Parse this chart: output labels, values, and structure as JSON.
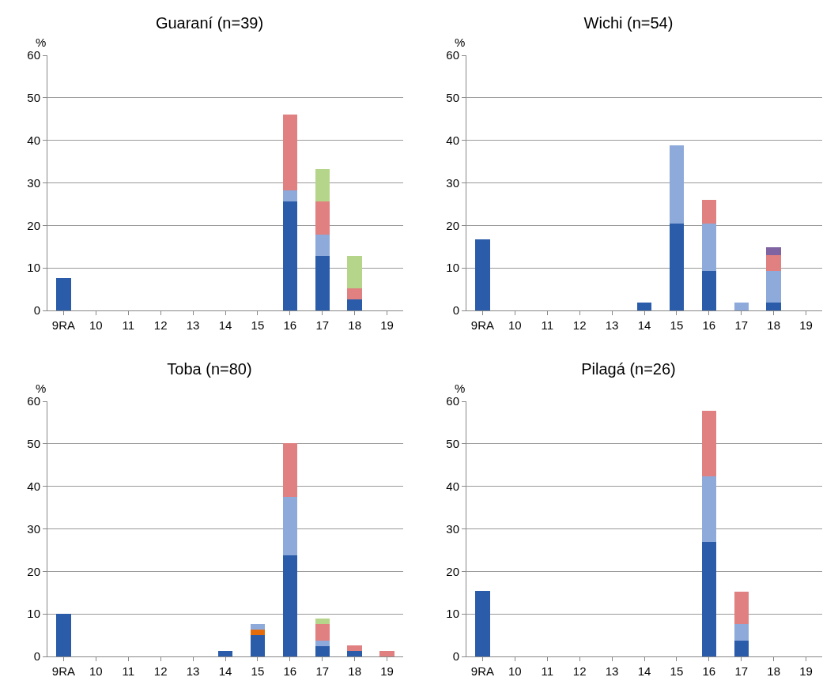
{
  "chart_data": [
    {
      "type": "bar",
      "title": "Guaraní (n=39)",
      "ylabel": "%",
      "categories": [
        "9RA",
        "10",
        "11",
        "12",
        "13",
        "14",
        "15",
        "16",
        "17",
        "18",
        "19"
      ],
      "stacked": true,
      "ylim": [
        0,
        60
      ],
      "yticks": [
        0,
        10,
        20,
        30,
        40,
        50,
        60
      ],
      "grid": "y",
      "series": [
        {
          "color": "#2a5caa",
          "values": [
            7.7,
            0,
            0,
            0,
            0,
            0,
            0,
            25.6,
            12.8,
            2.6,
            0
          ]
        },
        {
          "color": "#8eaadb",
          "values": [
            0,
            0,
            0,
            0,
            0,
            0,
            0,
            2.6,
            5.1,
            0,
            0
          ]
        },
        {
          "color": "#e08080",
          "values": [
            0,
            0,
            0,
            0,
            0,
            0,
            0,
            17.9,
            7.7,
            2.6,
            0
          ]
        },
        {
          "color": "#b5d68a",
          "values": [
            0,
            0,
            0,
            0,
            0,
            0,
            0,
            0,
            7.7,
            7.7,
            0
          ]
        }
      ]
    },
    {
      "type": "bar",
      "title": "Wichi (n=54)",
      "ylabel": "%",
      "categories": [
        "9RA",
        "10",
        "11",
        "12",
        "13",
        "14",
        "15",
        "16",
        "17",
        "18",
        "19"
      ],
      "stacked": true,
      "ylim": [
        0,
        60
      ],
      "yticks": [
        0,
        10,
        20,
        30,
        40,
        50,
        60
      ],
      "grid": "y",
      "series": [
        {
          "color": "#2a5caa",
          "values": [
            16.7,
            0,
            0,
            0,
            0,
            1.9,
            20.4,
            9.3,
            0,
            1.9,
            0
          ]
        },
        {
          "color": "#8eaadb",
          "values": [
            0,
            0,
            0,
            0,
            0,
            0,
            18.5,
            11.1,
            1.9,
            7.4,
            0
          ]
        },
        {
          "color": "#e08080",
          "values": [
            0,
            0,
            0,
            0,
            0,
            0,
            0,
            5.6,
            0,
            3.7,
            0
          ]
        },
        {
          "color": "#8064a2",
          "values": [
            0,
            0,
            0,
            0,
            0,
            0,
            0,
            0,
            0,
            1.9,
            0
          ]
        }
      ]
    },
    {
      "type": "bar",
      "title": "Toba (n=80)",
      "ylabel": "%",
      "categories": [
        "9RA",
        "10",
        "11",
        "12",
        "13",
        "14",
        "15",
        "16",
        "17",
        "18",
        "19"
      ],
      "stacked": true,
      "ylim": [
        0,
        60
      ],
      "yticks": [
        0,
        10,
        20,
        30,
        40,
        50,
        60
      ],
      "grid": "y",
      "series": [
        {
          "color": "#2a5caa",
          "values": [
            10,
            0,
            0,
            0,
            0,
            1.3,
            5,
            23.8,
            2.5,
            1.3,
            0
          ]
        },
        {
          "color": "#e46c0a",
          "values": [
            0,
            0,
            0,
            0,
            0,
            0,
            1.3,
            0,
            0,
            0,
            0
          ]
        },
        {
          "color": "#8eaadb",
          "values": [
            0,
            0,
            0,
            0,
            0,
            0,
            1.3,
            13.8,
            1.3,
            0,
            0
          ]
        },
        {
          "color": "#e08080",
          "values": [
            0,
            0,
            0,
            0,
            0,
            0,
            0,
            12.5,
            3.8,
            1.3,
            1.3
          ]
        },
        {
          "color": "#b5d68a",
          "values": [
            0,
            0,
            0,
            0,
            0,
            0,
            0,
            0,
            1.3,
            0,
            0
          ]
        }
      ]
    },
    {
      "type": "bar",
      "title": "Pilagá (n=26)",
      "ylabel": "%",
      "categories": [
        "9RA",
        "10",
        "11",
        "12",
        "13",
        "14",
        "15",
        "16",
        "17",
        "18",
        "19"
      ],
      "stacked": true,
      "ylim": [
        0,
        60
      ],
      "yticks": [
        0,
        10,
        20,
        30,
        40,
        50,
        60
      ],
      "grid": "y",
      "series": [
        {
          "color": "#2a5caa",
          "values": [
            15.4,
            0,
            0,
            0,
            0,
            0,
            0,
            26.9,
            3.8,
            0,
            0
          ]
        },
        {
          "color": "#8eaadb",
          "values": [
            0,
            0,
            0,
            0,
            0,
            0,
            0,
            15.4,
            3.8,
            0,
            0
          ]
        },
        {
          "color": "#e08080",
          "values": [
            0,
            0,
            0,
            0,
            0,
            0,
            0,
            15.4,
            7.7,
            0,
            0
          ]
        }
      ]
    }
  ]
}
